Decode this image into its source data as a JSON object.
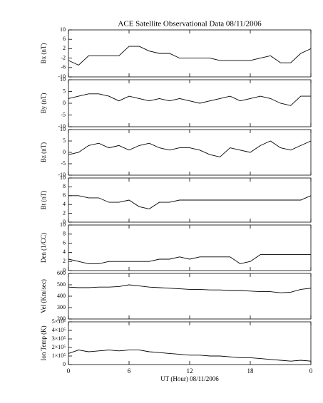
{
  "chart_data": [
    {
      "type": "line",
      "title": "ACE Satellite Observational Data   08/11/2006",
      "ylabel": "Bx (nT)",
      "x": [
        0,
        1,
        2,
        3,
        4,
        5,
        6,
        7,
        8,
        9,
        10,
        11,
        12,
        13,
        14,
        15,
        16,
        17,
        18,
        19,
        20,
        21,
        22,
        23,
        24
      ],
      "values": [
        -3,
        -5,
        -1,
        -1,
        -1,
        -1,
        3,
        3,
        1,
        0,
        0,
        -2,
        -2,
        -2,
        -2,
        -3,
        -3,
        -3,
        -3,
        -2,
        -1,
        -4,
        -4,
        0,
        2
      ],
      "xlim": [
        0,
        24
      ],
      "xticks": [
        0,
        6,
        12,
        18,
        24
      ],
      "ylim": [
        -10,
        10
      ],
      "yticks": [
        -10,
        -6,
        -2,
        2,
        6,
        10
      ]
    },
    {
      "type": "line",
      "ylabel": "By (nT)",
      "x": [
        0,
        1,
        2,
        3,
        4,
        5,
        6,
        7,
        8,
        9,
        10,
        11,
        12,
        13,
        14,
        15,
        16,
        17,
        18,
        19,
        20,
        21,
        22,
        23,
        24
      ],
      "values": [
        2,
        3,
        4,
        4,
        3,
        1,
        3,
        2,
        1,
        2,
        1,
        2,
        1,
        0,
        1,
        2,
        3,
        1,
        2,
        3,
        2,
        0,
        -1,
        3,
        3
      ],
      "xlim": [
        0,
        24
      ],
      "xticks": [
        0,
        6,
        12,
        18,
        24
      ],
      "ylim": [
        -10,
        10
      ],
      "yticks": [
        -10,
        -5,
        0,
        5,
        10
      ]
    },
    {
      "type": "line",
      "ylabel": "Bz (nT)",
      "x": [
        0,
        1,
        2,
        3,
        4,
        5,
        6,
        7,
        8,
        9,
        10,
        11,
        12,
        13,
        14,
        15,
        16,
        17,
        18,
        19,
        20,
        21,
        22,
        23,
        24
      ],
      "values": [
        -1,
        0,
        3,
        4,
        2,
        3,
        1,
        3,
        4,
        2,
        1,
        2,
        2,
        1,
        -1,
        -2,
        2,
        1,
        0,
        3,
        5,
        2,
        1,
        3,
        5
      ],
      "xlim": [
        0,
        24
      ],
      "xticks": [
        0,
        6,
        12,
        18,
        24
      ],
      "ylim": [
        -10,
        10
      ],
      "yticks": [
        -10,
        -5,
        0,
        5,
        10
      ]
    },
    {
      "type": "line",
      "ylabel": "Bt (nT)",
      "x": [
        0,
        1,
        2,
        3,
        4,
        5,
        6,
        7,
        8,
        9,
        10,
        11,
        12,
        13,
        14,
        15,
        16,
        17,
        18,
        19,
        20,
        21,
        22,
        23,
        24
      ],
      "values": [
        6,
        6,
        5.5,
        5.5,
        4.5,
        4.5,
        5,
        3.5,
        3,
        4.5,
        4.5,
        5,
        5,
        5,
        5,
        5,
        5,
        5,
        5,
        5,
        5,
        5,
        5,
        5,
        6
      ],
      "xlim": [
        0,
        24
      ],
      "xticks": [
        0,
        6,
        12,
        18,
        24
      ],
      "ylim": [
        0,
        10
      ],
      "yticks": [
        0,
        2,
        4,
        6,
        8,
        10
      ]
    },
    {
      "type": "line",
      "ylabel": "Den (1/CC)",
      "x": [
        0,
        1,
        2,
        3,
        4,
        5,
        6,
        7,
        8,
        9,
        10,
        11,
        12,
        13,
        14,
        15,
        16,
        17,
        18,
        19,
        20,
        21,
        22,
        23,
        24
      ],
      "values": [
        2.5,
        2,
        1.5,
        1.5,
        2,
        2,
        2,
        2,
        2,
        2.5,
        2.5,
        3,
        2.5,
        3,
        3,
        3,
        3,
        1.5,
        2,
        3.5,
        3.5,
        3.5,
        3.5,
        3.5,
        3.5
      ],
      "xlim": [
        0,
        24
      ],
      "xticks": [
        0,
        6,
        12,
        18,
        24
      ],
      "ylim": [
        0,
        10
      ],
      "yticks": [
        0,
        2,
        4,
        6,
        8,
        10
      ]
    },
    {
      "type": "line",
      "ylabel": "Vel (Km/sec)",
      "x": [
        0,
        1,
        2,
        3,
        4,
        5,
        6,
        7,
        8,
        9,
        10,
        11,
        12,
        13,
        14,
        15,
        16,
        17,
        18,
        19,
        20,
        21,
        22,
        23,
        24
      ],
      "values": [
        480,
        475,
        475,
        480,
        480,
        485,
        500,
        490,
        480,
        475,
        470,
        465,
        460,
        460,
        455,
        455,
        450,
        450,
        445,
        440,
        440,
        430,
        435,
        460,
        470
      ],
      "xlim": [
        0,
        24
      ],
      "xticks": [
        0,
        6,
        12,
        18,
        24
      ],
      "ylim": [
        200,
        600
      ],
      "yticks": [
        200,
        300,
        400,
        500,
        600
      ]
    },
    {
      "type": "line",
      "ylabel": "Ion Temp (K)",
      "xlabel": "UT (Hour)   08/11/2006",
      "x": [
        0,
        1,
        2,
        3,
        4,
        5,
        6,
        7,
        8,
        9,
        10,
        11,
        12,
        13,
        14,
        15,
        16,
        17,
        18,
        19,
        20,
        21,
        22,
        23,
        24
      ],
      "values": [
        130000,
        170000,
        150000,
        160000,
        170000,
        160000,
        170000,
        170000,
        150000,
        140000,
        130000,
        120000,
        110000,
        110000,
        100000,
        100000,
        90000,
        80000,
        80000,
        70000,
        60000,
        50000,
        40000,
        50000,
        40000
      ],
      "xlim": [
        0,
        24
      ],
      "xticks": [
        0,
        6,
        12,
        18,
        {
          "value": 24,
          "label": "0"
        }
      ],
      "ylim": [
        0,
        500000
      ],
      "yticks": [
        0,
        {
          "value": 100000,
          "label": "1×10⁵"
        },
        {
          "value": 200000,
          "label": "2×10⁵"
        },
        {
          "value": 300000,
          "label": "3×10⁵"
        },
        {
          "value": 400000,
          "label": "4×10⁵"
        },
        {
          "value": 500000,
          "label": "5×10⁵"
        }
      ]
    }
  ]
}
